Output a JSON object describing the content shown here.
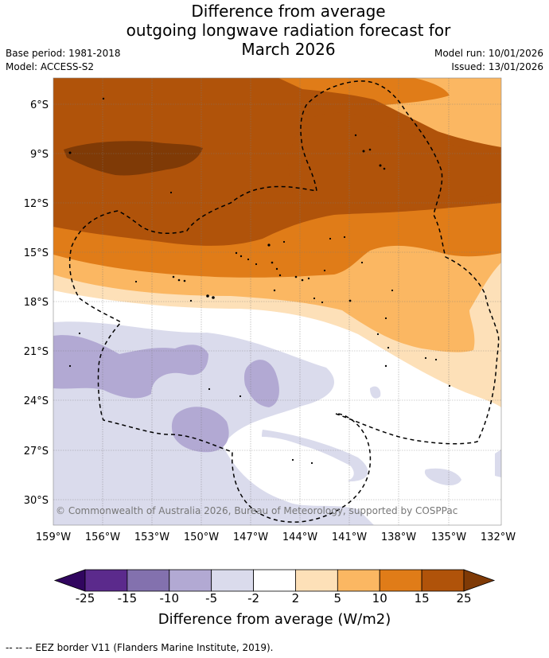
{
  "title": {
    "line1": "Difference from average",
    "line2": "outgoing longwave radiation forecast for",
    "line3": "March 2026"
  },
  "meta": {
    "base_period": "Base period: 1981-2018",
    "model": "Model: ACCESS-S2",
    "model_run": "Model run: 10/01/2026",
    "issued": "Issued: 13/01/2026"
  },
  "map": {
    "lat_labels": [
      "6°S",
      "9°S",
      "12°S",
      "15°S",
      "18°S",
      "21°S",
      "24°S",
      "27°S",
      "30°S"
    ],
    "lon_labels": [
      "159°W",
      "156°W",
      "153°W",
      "150°W",
      "147°W",
      "144°W",
      "141°W",
      "138°W",
      "135°W",
      "132°W"
    ],
    "copyright": "© Commonwealth of Australia 2026, Bureau of Meteorology, supported by COSPPac"
  },
  "colorbar": {
    "ticks": [
      "-25",
      "-15",
      "-10",
      "-5",
      "-2",
      "2",
      "5",
      "10",
      "15",
      "25"
    ],
    "colors": [
      "#31065f",
      "#5b2a8c",
      "#8371ae",
      "#b2a9d3",
      "#dadbec",
      "#ffffff",
      "#fde0b8",
      "#fbb762",
      "#e07c18",
      "#b0530a",
      "#7f3a06"
    ],
    "label": "Difference from average (W/m2)"
  },
  "legend": {
    "eez": "--  --  -- EEZ border V11 (Flanders Marine Institute, 2019)."
  }
}
